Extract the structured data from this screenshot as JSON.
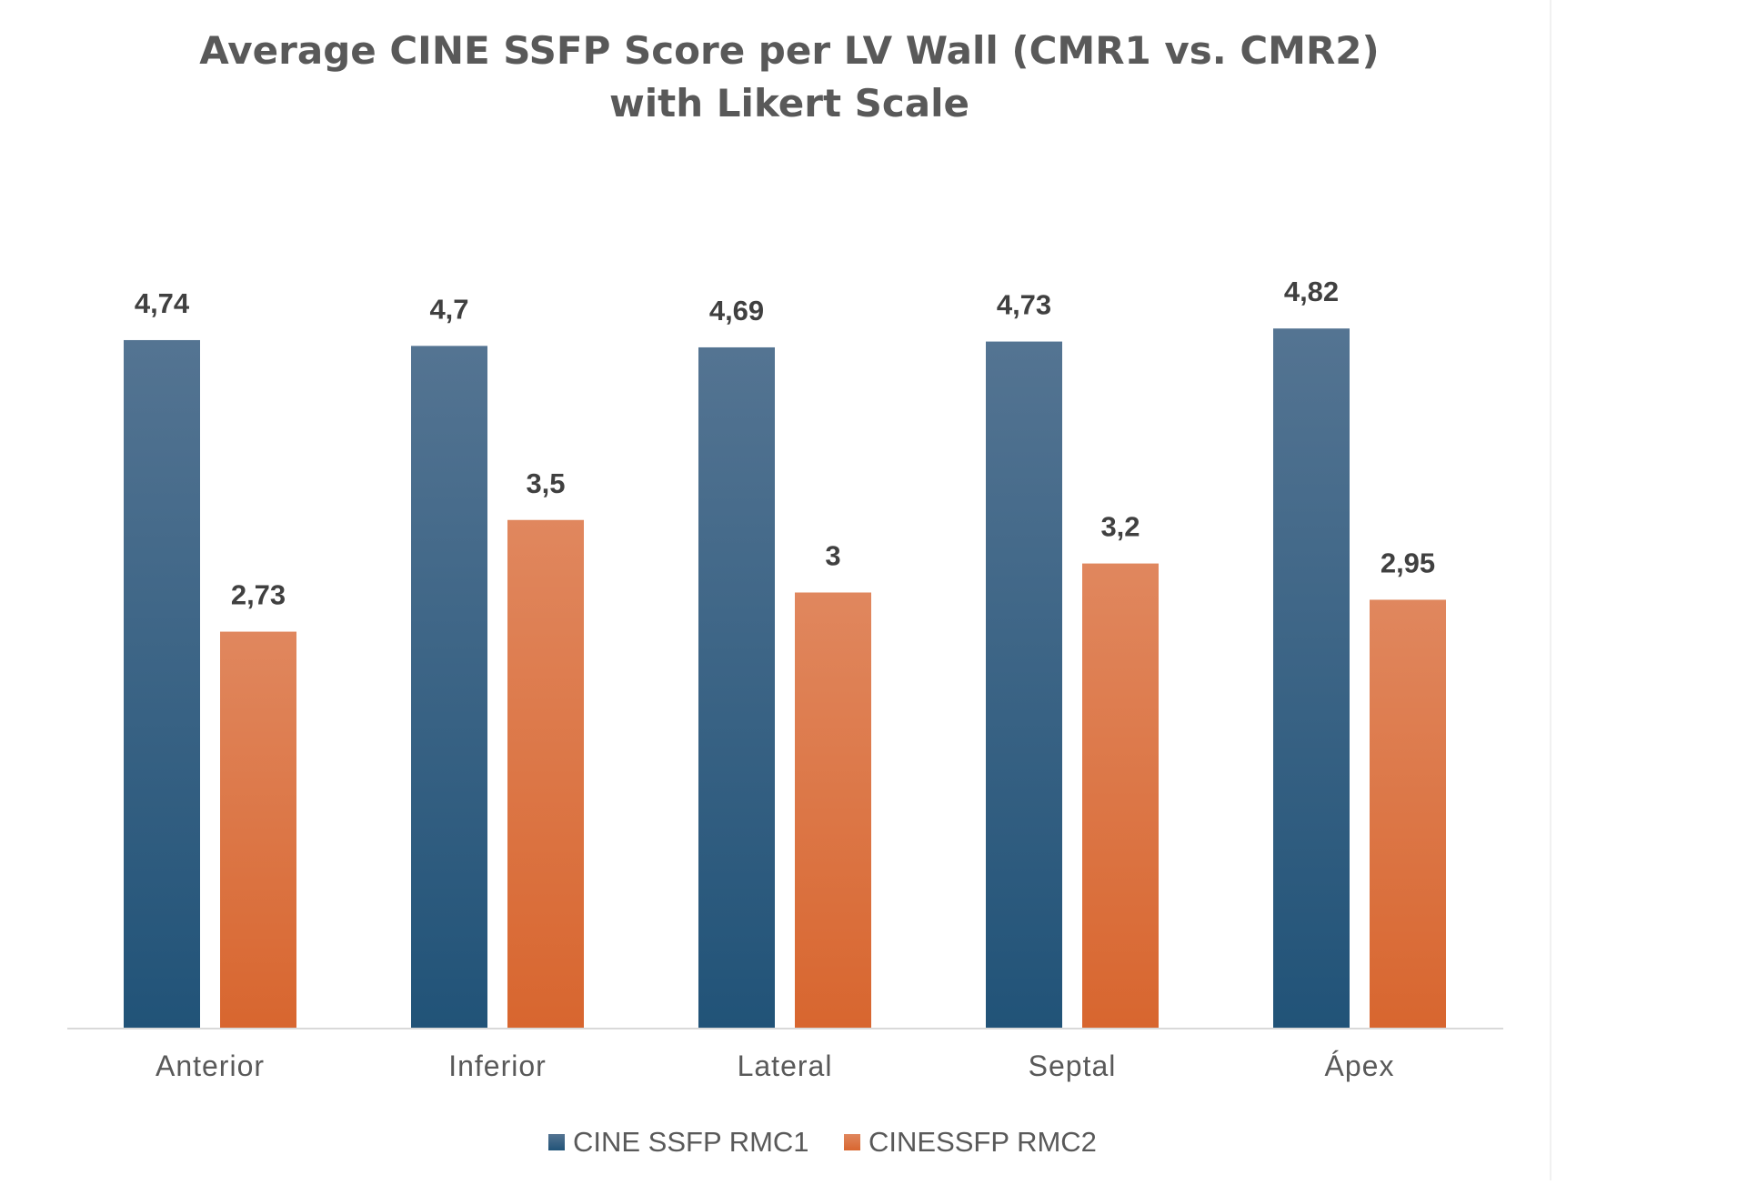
{
  "chart_data": {
    "type": "bar",
    "title": "Average CINE SSFP Score per LV Wall (CMR1 vs. CMR2)",
    "subtitle": "with Likert Scale",
    "xlabel": "",
    "ylabel": "",
    "ylim": [
      0,
      5
    ],
    "grid": false,
    "legend_position": "bottom",
    "categories": [
      "Anterior",
      "Inferior",
      "Lateral",
      "Septal",
      "Ápex"
    ],
    "series": [
      {
        "name": "CINE SSFP RMC1",
        "values": [
          4.74,
          4.7,
          4.69,
          4.73,
          4.82
        ],
        "labels": [
          "4,74",
          "4,7",
          "4,69",
          "4,73",
          "4,82"
        ],
        "color_top": "#547492",
        "color_bottom": "#215378"
      },
      {
        "name": "CINESSFP RMC2",
        "values": [
          2.73,
          3.5,
          3.0,
          3.2,
          2.95
        ],
        "labels": [
          "2,73",
          "3,5",
          "3",
          "3,2",
          "2,95"
        ],
        "color_top": "#e0875e",
        "color_bottom": "#d8662f"
      }
    ],
    "axis_color": "#d9d9d9"
  }
}
